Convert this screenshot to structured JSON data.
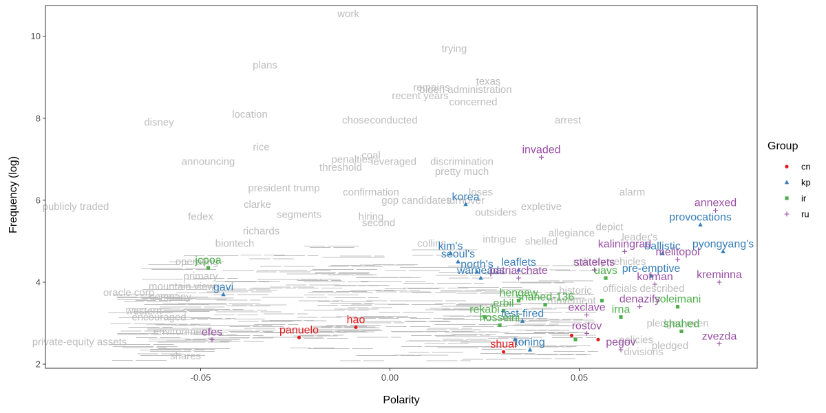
{
  "chart_data": {
    "type": "scatter",
    "xlabel": "Polarity",
    "ylabel": "Frequency (log)",
    "xlim": [
      -0.091,
      0.097
    ],
    "ylim": [
      1.9,
      10.75
    ],
    "x_ticks": [
      -0.05,
      0.0,
      0.05
    ],
    "x_tick_labels": [
      "-0.05",
      "0.00",
      "0.05"
    ],
    "y_ticks": [
      2,
      4,
      6,
      8,
      10
    ],
    "y_tick_labels": [
      "2",
      "4",
      "6",
      "8",
      "10"
    ],
    "legend": {
      "title": "Group",
      "placement": "right",
      "entries": [
        {
          "key": "cn",
          "label": "cn",
          "color": "#e41a1c",
          "shape": "circle"
        },
        {
          "key": "kp",
          "label": "kp",
          "color": "#377eb8",
          "shape": "triangle"
        },
        {
          "key": "ir",
          "label": "ir",
          "color": "#4daf4a",
          "shape": "square"
        },
        {
          "key": "ru",
          "label": "ru",
          "color": "#984ea3",
          "shape": "plus"
        }
      ]
    },
    "background_words": [
      {
        "text": "work",
        "x": -0.011,
        "y": 10.55
      },
      {
        "text": "trying",
        "x": 0.017,
        "y": 9.7
      },
      {
        "text": "plans",
        "x": -0.033,
        "y": 9.3
      },
      {
        "text": "texas",
        "x": 0.026,
        "y": 8.9
      },
      {
        "text": "remains",
        "x": 0.011,
        "y": 8.75
      },
      {
        "text": "biden administration",
        "x": 0.02,
        "y": 8.7
      },
      {
        "text": "recent years",
        "x": 0.008,
        "y": 8.55
      },
      {
        "text": "concerned",
        "x": 0.022,
        "y": 8.4
      },
      {
        "text": "disney",
        "x": -0.061,
        "y": 7.9
      },
      {
        "text": "location",
        "x": -0.037,
        "y": 8.1
      },
      {
        "text": "chose",
        "x": -0.009,
        "y": 7.95
      },
      {
        "text": "conducted",
        "x": 0.001,
        "y": 7.95
      },
      {
        "text": "arrest",
        "x": 0.047,
        "y": 7.95
      },
      {
        "text": "rice",
        "x": -0.034,
        "y": 7.3
      },
      {
        "text": "announcing",
        "x": -0.048,
        "y": 6.95
      },
      {
        "text": "penalties",
        "x": -0.01,
        "y": 7.0
      },
      {
        "text": "coal",
        "x": -0.005,
        "y": 7.1
      },
      {
        "text": "leveraged",
        "x": 0.001,
        "y": 6.95
      },
      {
        "text": "discrimination",
        "x": 0.019,
        "y": 6.95
      },
      {
        "text": "threshold",
        "x": -0.013,
        "y": 6.8
      },
      {
        "text": "pretty much",
        "x": 0.019,
        "y": 6.7
      },
      {
        "text": "president trump",
        "x": -0.028,
        "y": 6.3
      },
      {
        "text": "confirmation",
        "x": -0.005,
        "y": 6.2
      },
      {
        "text": "loses",
        "x": 0.024,
        "y": 6.2
      },
      {
        "text": "alarm",
        "x": 0.064,
        "y": 6.2
      },
      {
        "text": "publicly traded",
        "x": -0.083,
        "y": 5.85
      },
      {
        "text": "clarke",
        "x": -0.035,
        "y": 5.9
      },
      {
        "text": "gop candidates",
        "x": 0.007,
        "y": 6.0
      },
      {
        "text": "turnover",
        "x": 0.02,
        "y": 6.0
      },
      {
        "text": "fedex",
        "x": -0.05,
        "y": 5.6
      },
      {
        "text": "segments",
        "x": -0.024,
        "y": 5.65
      },
      {
        "text": "expletive",
        "x": 0.04,
        "y": 5.85
      },
      {
        "text": "hiring",
        "x": -0.005,
        "y": 5.6
      },
      {
        "text": "outsiders",
        "x": 0.028,
        "y": 5.7
      },
      {
        "text": "second",
        "x": -0.003,
        "y": 5.45
      },
      {
        "text": "depict",
        "x": 0.058,
        "y": 5.35
      },
      {
        "text": "richards",
        "x": -0.034,
        "y": 5.25
      },
      {
        "text": "allegiance",
        "x": 0.048,
        "y": 5.2
      },
      {
        "text": "leader's",
        "x": 0.066,
        "y": 5.1
      },
      {
        "text": "intrigue",
        "x": 0.029,
        "y": 5.05
      },
      {
        "text": "shelled",
        "x": 0.04,
        "y": 5.0
      },
      {
        "text": "collins",
        "x": 0.011,
        "y": 4.95
      },
      {
        "text": "biontech",
        "x": -0.041,
        "y": 4.95
      },
      {
        "text": "operating",
        "x": -0.051,
        "y": 4.5
      },
      {
        "text": "primary",
        "x": -0.05,
        "y": 4.15
      },
      {
        "text": "mountain view",
        "x": -0.055,
        "y": 3.9
      },
      {
        "text": "company",
        "x": -0.058,
        "y": 3.65
      },
      {
        "text": "oracle corp",
        "x": -0.069,
        "y": 3.75
      },
      {
        "text": "western",
        "x": -0.065,
        "y": 3.3
      },
      {
        "text": "encouraged",
        "x": -0.061,
        "y": 3.15
      },
      {
        "text": "environment",
        "x": -0.055,
        "y": 2.8
      },
      {
        "text": "private-equity assets",
        "x": -0.082,
        "y": 2.55
      },
      {
        "text": "shares",
        "x": -0.054,
        "y": 2.2
      },
      {
        "text": "military vehicles",
        "x": 0.058,
        "y": 4.5
      },
      {
        "text": "officials described",
        "x": 0.067,
        "y": 3.85
      },
      {
        "text": "historic",
        "x": 0.049,
        "y": 3.8
      },
      {
        "text": "movement",
        "x": 0.048,
        "y": 3.55
      },
      {
        "text": "policies",
        "x": 0.065,
        "y": 2.6
      },
      {
        "text": "divisions",
        "x": 0.067,
        "y": 2.3
      },
      {
        "text": "pledged even",
        "x": 0.076,
        "y": 3.0
      },
      {
        "text": "pledged",
        "x": 0.074,
        "y": 2.45
      }
    ],
    "series": [
      {
        "name": "cn",
        "points": [
          {
            "label": "hao",
            "x": -0.009,
            "y": 2.9
          },
          {
            "label": "panuelo",
            "x": -0.024,
            "y": 2.65
          },
          {
            "label": "shuai",
            "x": 0.03,
            "y": 2.3
          },
          {
            "label": "",
            "x": 0.048,
            "y": 2.7
          },
          {
            "label": "",
            "x": 0.055,
            "y": 2.6
          }
        ]
      },
      {
        "name": "kp",
        "points": [
          {
            "label": "korea",
            "x": 0.02,
            "y": 5.9
          },
          {
            "label": "kim's",
            "x": 0.016,
            "y": 4.7
          },
          {
            "label": "seoul's",
            "x": 0.018,
            "y": 4.5
          },
          {
            "label": "north's",
            "x": 0.023,
            "y": 4.25
          },
          {
            "label": "warheads",
            "x": 0.024,
            "y": 4.1
          },
          {
            "label": "leaflets",
            "x": 0.034,
            "y": 4.3
          },
          {
            "label": "provocations",
            "x": 0.082,
            "y": 5.4
          },
          {
            "label": "ballistic",
            "x": 0.072,
            "y": 4.7
          },
          {
            "label": "pyongyang's",
            "x": 0.088,
            "y": 4.75
          },
          {
            "label": "pre-emptive",
            "x": 0.069,
            "y": 4.15
          },
          {
            "label": "gavi",
            "x": -0.044,
            "y": 3.7
          },
          {
            "label": "test-fired",
            "x": 0.035,
            "y": 3.05
          },
          {
            "label": "toning",
            "x": 0.037,
            "y": 2.35
          },
          {
            "label": "",
            "x": 0.033,
            "y": 2.6
          }
        ]
      },
      {
        "name": "ir",
        "points": [
          {
            "label": "jcpoa",
            "x": -0.048,
            "y": 4.35
          },
          {
            "label": "hengaw",
            "x": 0.034,
            "y": 3.55
          },
          {
            "label": "shahed-136",
            "x": 0.041,
            "y": 3.45
          },
          {
            "label": "uavs",
            "x": 0.057,
            "y": 4.1
          },
          {
            "label": "erbil",
            "x": 0.03,
            "y": 3.3
          },
          {
            "label": "rekabi",
            "x": 0.025,
            "y": 3.15
          },
          {
            "label": "hosseini",
            "x": 0.029,
            "y": 2.95
          },
          {
            "label": "soleimani",
            "x": 0.076,
            "y": 3.4
          },
          {
            "label": "irna",
            "x": 0.061,
            "y": 3.15
          },
          {
            "label": "shahed",
            "x": 0.077,
            "y": 2.8
          },
          {
            "label": "",
            "x": 0.056,
            "y": 3.55
          },
          {
            "label": "",
            "x": 0.049,
            "y": 2.6
          }
        ]
      },
      {
        "name": "ru",
        "points": [
          {
            "label": "invaded",
            "x": 0.04,
            "y": 7.05
          },
          {
            "label": "annexed",
            "x": 0.086,
            "y": 5.75
          },
          {
            "label": "kaliningrad",
            "x": 0.062,
            "y": 4.75
          },
          {
            "label": "melitopol",
            "x": 0.076,
            "y": 4.55
          },
          {
            "label": "statelets",
            "x": 0.054,
            "y": 4.3
          },
          {
            "label": "patriarchate",
            "x": 0.034,
            "y": 4.1
          },
          {
            "label": "kofman",
            "x": 0.07,
            "y": 3.95
          },
          {
            "label": "kreminna",
            "x": 0.087,
            "y": 4.0
          },
          {
            "label": "denazify",
            "x": 0.066,
            "y": 3.4
          },
          {
            "label": "exclave",
            "x": 0.052,
            "y": 3.2
          },
          {
            "label": "rostov",
            "x": 0.052,
            "y": 2.75
          },
          {
            "label": "pegov",
            "x": 0.061,
            "y": 2.35
          },
          {
            "label": "zvezda",
            "x": 0.087,
            "y": 2.5
          },
          {
            "label": "efes",
            "x": -0.047,
            "y": 2.6
          }
        ]
      }
    ]
  }
}
